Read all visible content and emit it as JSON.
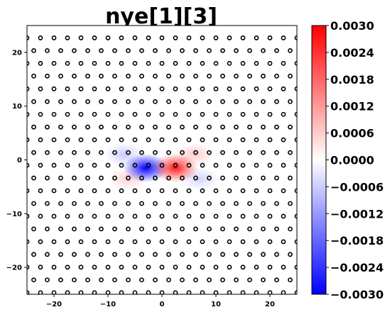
{
  "chart_data": {
    "type": "heatmap",
    "title": "nye[1][3]",
    "xlabel": "",
    "ylabel": "",
    "xlim": [
      -25,
      25
    ],
    "ylim": [
      -25,
      25
    ],
    "x_ticks": [
      -20,
      -10,
      0,
      10,
      20
    ],
    "y_ticks": [
      -20,
      -10,
      0,
      10,
      20
    ],
    "colorbar": {
      "colormap": "bwr",
      "min": -0.003,
      "max": 0.003,
      "ticks": [
        "0.0030",
        "0.0024",
        "0.0018",
        "0.0012",
        "0.0006",
        "0.0000",
        "−0.0006",
        "−0.0012",
        "−0.0018",
        "−0.0024",
        "−0.0030"
      ],
      "colors": {
        "low": "#0000ff",
        "mid": "#ffffff",
        "high": "#ff0000"
      }
    },
    "field_extrema": [
      {
        "x": -3,
        "y": -1.5,
        "value": -0.003
      },
      {
        "x": 2.5,
        "y": -1.5,
        "value": 0.0026
      },
      {
        "x": -7,
        "y": 1,
        "value": -0.0006
      },
      {
        "x": 6,
        "y": 1,
        "value": 0.0006
      },
      {
        "x": -6.5,
        "y": -3.5,
        "value": 0.0005
      },
      {
        "x": 7,
        "y": -3.5,
        "value": -0.0005
      }
    ],
    "atoms": {
      "marker": "open-circle",
      "color": "#000000",
      "y_start": -24.7,
      "y_spacing": 2.37,
      "rows": 21,
      "x_spacing": 2.5,
      "columns": 20,
      "odd_row_offset": -1.25
    }
  }
}
